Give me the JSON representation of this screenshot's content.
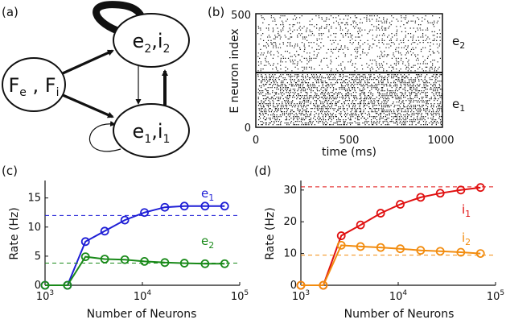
{
  "panels": {
    "a": {
      "label": "(a)"
    },
    "b": {
      "label": "(b)"
    },
    "c": {
      "label": "(c)"
    },
    "d": {
      "label": "(d)"
    }
  },
  "diagram": {
    "nodes": [
      {
        "id": "ext",
        "text": "F_e , F_i"
      },
      {
        "id": "pop2",
        "text": "e_2,i_2"
      },
      {
        "id": "pop1",
        "text": "e_1,i_1"
      }
    ]
  },
  "chart_data": [
    {
      "type": "scatter",
      "panel": "(b)",
      "xlabel": "time (ms)",
      "ylabel": "E neuron index",
      "xlim": [
        0,
        1000
      ],
      "ylim": [
        0,
        500
      ],
      "xticks": [
        "0",
        "500",
        "1000"
      ],
      "yticks": [
        "0",
        "500"
      ],
      "divider_y": 250,
      "region_labels": [
        {
          "name": "e_2",
          "y": 375,
          "density": 0.35
        },
        {
          "name": "e_1",
          "y": 125,
          "density": 0.65
        }
      ]
    },
    {
      "type": "line",
      "panel": "(c)",
      "xlabel": "Number of Neurons",
      "ylabel": "Rate (Hz)",
      "xscale": "log",
      "xlim": [
        1000,
        100000
      ],
      "ylim": [
        0,
        18
      ],
      "yticks": [
        0,
        5,
        10,
        15
      ],
      "grid": false,
      "x": [
        1000,
        1700,
        2600,
        4100,
        6600,
        10500,
        17000,
        27000,
        44000,
        70000
      ],
      "series": [
        {
          "name": "e_1",
          "color": "#1f1fd6",
          "values": [
            0,
            0,
            7.5,
            9.3,
            11.2,
            12.5,
            13.4,
            13.6,
            13.6,
            13.6
          ],
          "limit": 12.0
        },
        {
          "name": "e_2",
          "color": "#1a8a1a",
          "values": [
            0,
            0,
            4.9,
            4.5,
            4.4,
            4.1,
            3.9,
            3.8,
            3.7,
            3.7
          ],
          "limit": 3.8
        }
      ]
    },
    {
      "type": "line",
      "panel": "(d)",
      "xlabel": "Number of Neurons",
      "ylabel": "Rate (Hz)",
      "xscale": "log",
      "xlim": [
        1000,
        100000
      ],
      "ylim": [
        0,
        33
      ],
      "yticks": [
        0,
        10,
        20,
        30
      ],
      "grid": false,
      "x": [
        1000,
        1700,
        2600,
        4100,
        6600,
        10500,
        17000,
        27000,
        44000,
        70000
      ],
      "series": [
        {
          "name": "i_1",
          "color": "#e01010",
          "values": [
            0,
            0,
            15.6,
            19.0,
            22.7,
            25.5,
            27.7,
            29.0,
            30.0,
            30.8
          ],
          "limit": 31.0
        },
        {
          "name": "i_2",
          "color": "#f28c0f",
          "values": [
            0,
            0,
            12.6,
            12.2,
            11.9,
            11.5,
            11.0,
            10.7,
            10.4,
            10.0
          ],
          "limit": 9.5
        }
      ]
    }
  ]
}
